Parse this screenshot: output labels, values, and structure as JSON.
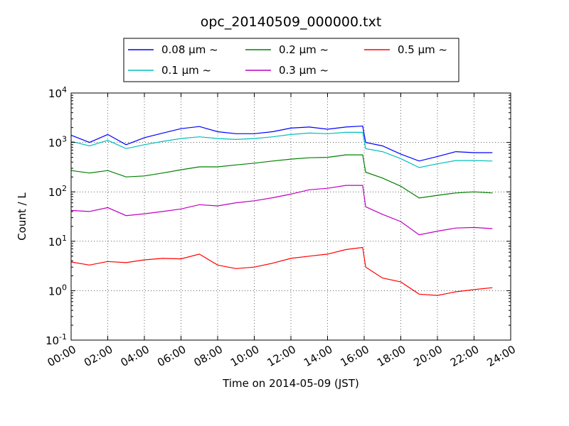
{
  "chart_data": {
    "type": "line",
    "title": "opc_20140509_000000.txt",
    "xlabel": "Time on 2014-05-09 (JST)",
    "ylabel": "Count / L",
    "yscale": "log",
    "ylim": [
      0.1,
      10000
    ],
    "xlim": [
      "00:00",
      "24:00"
    ],
    "grid": true,
    "legend_position": "top",
    "x_ticks": [
      "00:00",
      "02:00",
      "04:00",
      "06:00",
      "08:00",
      "10:00",
      "12:00",
      "14:00",
      "16:00",
      "18:00",
      "20:00",
      "22:00",
      "24:00"
    ],
    "y_ticks": [
      {
        "value": 0.1,
        "base": "10",
        "exp": "-1"
      },
      {
        "value": 1,
        "base": "10",
        "exp": "0"
      },
      {
        "value": 10,
        "base": "10",
        "exp": "1"
      },
      {
        "value": 100,
        "base": "10",
        "exp": "2"
      },
      {
        "value": 1000,
        "base": "10",
        "exp": "3"
      },
      {
        "value": 10000,
        "base": "10",
        "exp": "4"
      }
    ],
    "x": [
      "00:00",
      "01:00",
      "02:00",
      "03:00",
      "04:00",
      "05:00",
      "06:00",
      "07:00",
      "08:00",
      "09:00",
      "10:00",
      "11:00",
      "12:00",
      "13:00",
      "14:00",
      "15:00",
      "15:55",
      "16:05",
      "17:00",
      "18:00",
      "19:00",
      "20:00",
      "21:00",
      "22:00",
      "23:00"
    ],
    "series": [
      {
        "name": "0.08 μm ~",
        "color": "#0000ff",
        "values": [
          1400,
          1000,
          1450,
          900,
          1250,
          1550,
          1900,
          2100,
          1650,
          1500,
          1500,
          1650,
          1950,
          2050,
          1850,
          2050,
          2150,
          1000,
          850,
          580,
          420,
          520,
          650,
          620,
          620
        ]
      },
      {
        "name": "0.1 μm ~",
        "color": "#00bfbf",
        "values": [
          1050,
          850,
          1100,
          750,
          900,
          1050,
          1200,
          1300,
          1200,
          1150,
          1200,
          1300,
          1450,
          1550,
          1500,
          1600,
          1600,
          750,
          650,
          470,
          310,
          370,
          430,
          430,
          420
        ]
      },
      {
        "name": "0.2 μm ~",
        "color": "#008000",
        "values": [
          270,
          240,
          270,
          200,
          210,
          240,
          280,
          320,
          320,
          350,
          380,
          420,
          460,
          490,
          500,
          560,
          560,
          250,
          190,
          130,
          75,
          85,
          95,
          100,
          95
        ]
      },
      {
        "name": "0.3 μm ~",
        "color": "#bf00bf",
        "values": [
          42,
          40,
          48,
          33,
          36,
          40,
          45,
          55,
          52,
          60,
          66,
          76,
          90,
          110,
          118,
          135,
          135,
          50,
          35,
          25,
          13.5,
          16,
          18.5,
          19,
          18
        ]
      },
      {
        "name": "0.5 μm ~",
        "color": "#ff0000",
        "values": [
          3.8,
          3.3,
          3.9,
          3.7,
          4.2,
          4.5,
          4.4,
          5.5,
          3.3,
          2.8,
          3.0,
          3.6,
          4.5,
          5.0,
          5.5,
          6.8,
          7.5,
          3.0,
          1.8,
          1.5,
          0.85,
          0.8,
          0.95,
          1.05,
          1.15
        ]
      }
    ]
  }
}
